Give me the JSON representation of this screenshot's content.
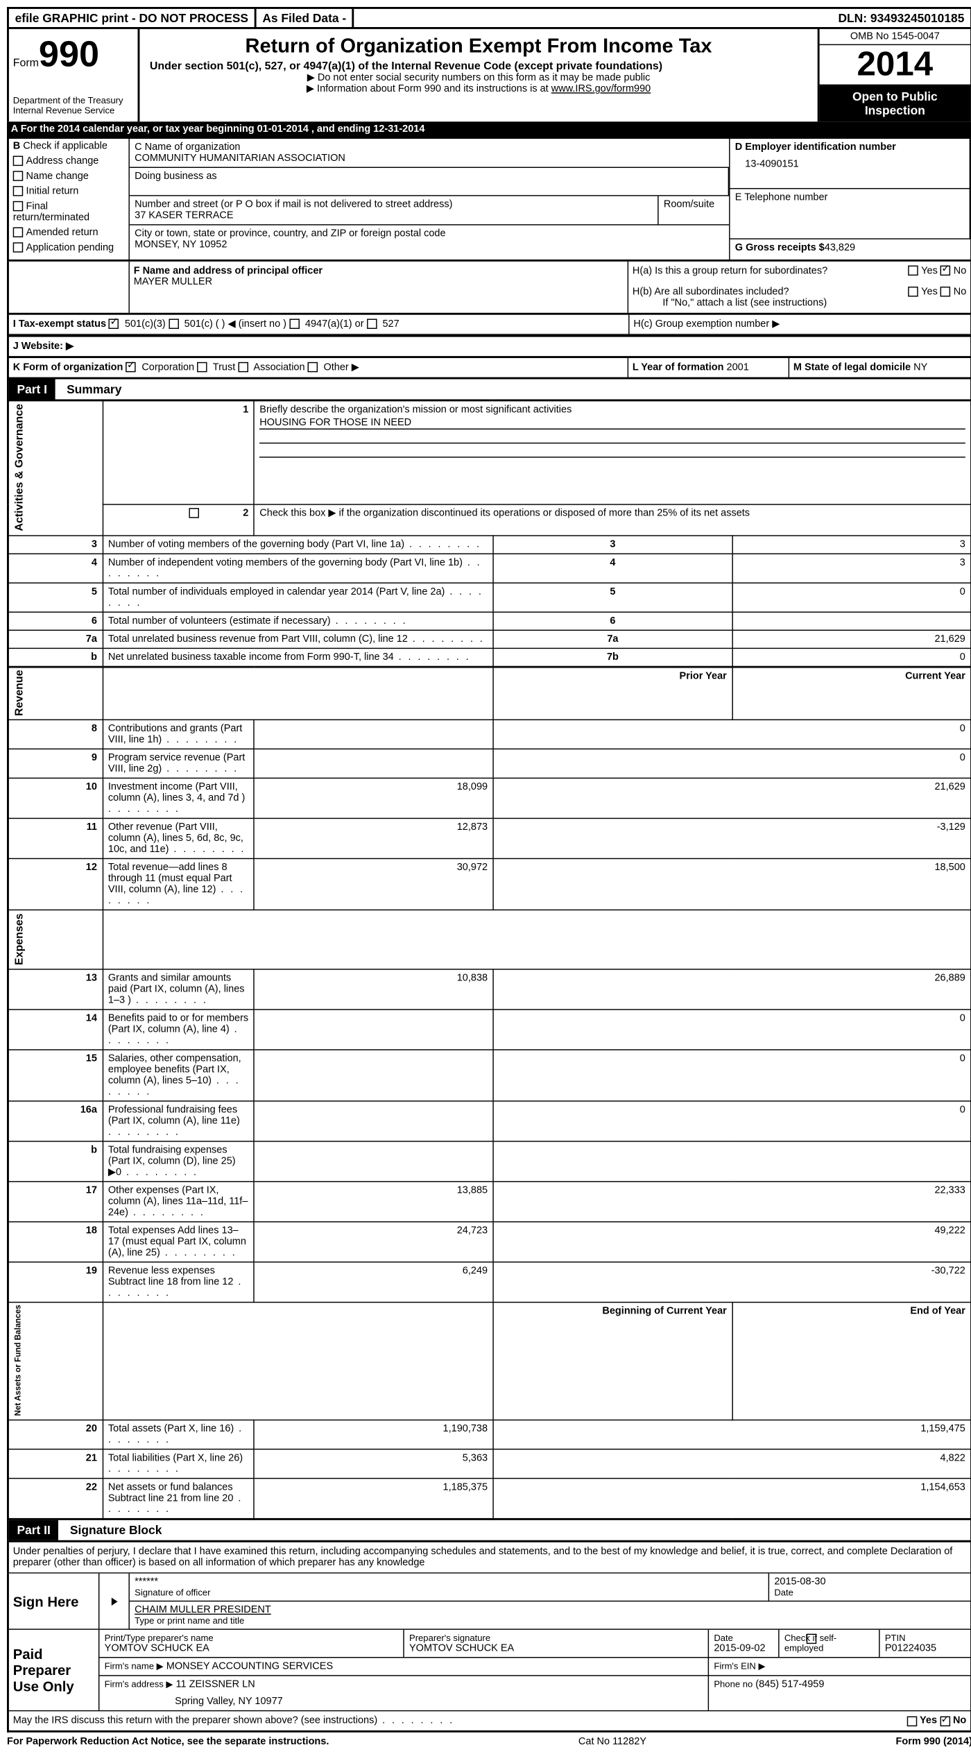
{
  "topbar": {
    "efile": "efile GRAPHIC print - DO NOT PROCESS",
    "asfiled": "As Filed Data -",
    "dln_label": "DLN:",
    "dln": "93493245010185"
  },
  "header": {
    "form_label": "Form",
    "form_num": "990",
    "dept1": "Department of the Treasury",
    "dept2": "Internal Revenue Service",
    "title": "Return of Organization Exempt From Income Tax",
    "subtitle": "Under section 501(c), 527, or 4947(a)(1) of the Internal Revenue Code (except private foundations)",
    "note1": "▶ Do not enter social security numbers on this form as it may be made public",
    "note2": "▶ Information about Form 990 and its instructions is at",
    "irs_link": "www.IRS.gov/form990",
    "omb": "OMB No 1545-0047",
    "year": "2014",
    "inspect1": "Open to Public",
    "inspect2": "Inspection"
  },
  "a": {
    "text": "A For the 2014 calendar year, or tax year beginning 01-01-2014    , and ending 12-31-2014"
  },
  "b": {
    "label": "B",
    "check_label": "Check if applicable",
    "items": [
      "Address change",
      "Name change",
      "Initial return",
      "Final return/terminated",
      "Amended return",
      "Application pending"
    ]
  },
  "c": {
    "name_label": "C Name of organization",
    "name": "COMMUNITY HUMANITARIAN ASSOCIATION",
    "dba_label": "Doing business as",
    "addr_label": "Number and street (or P O  box if mail is not delivered to street address)",
    "room_label": "Room/suite",
    "addr": "37 KASER TERRACE",
    "city_label": "City or town, state or province, country, and ZIP or foreign postal code",
    "city": "MONSEY, NY  10952"
  },
  "d": {
    "label": "D Employer identification number",
    "value": "13-4090151"
  },
  "e": {
    "label": "E Telephone number",
    "value": ""
  },
  "g": {
    "label": "G Gross receipts $",
    "value": "43,829"
  },
  "f": {
    "label": "F   Name and address of principal officer",
    "value": "MAYER MULLER"
  },
  "h": {
    "a_label": "H(a)  Is this a group return for subordinates?",
    "b_label": "H(b)  Are all subordinates included?",
    "ifno": "If \"No,\" attach a list  (see instructions)",
    "c_label": "H(c)  Group exemption number ▶",
    "yes": "Yes",
    "no": "No"
  },
  "i": {
    "label": "I   Tax-exempt status",
    "opts": [
      "501(c)(3)",
      "501(c) (  ) ◀ (insert no )",
      "4947(a)(1) or",
      "527"
    ]
  },
  "j": {
    "label": "J   Website: ▶"
  },
  "k": {
    "label": "K Form of organization",
    "opts": [
      "Corporation",
      "Trust",
      "Association",
      "Other ▶"
    ]
  },
  "l": {
    "label": "L Year of formation",
    "value": "2001"
  },
  "m": {
    "label": "M State of legal domicile",
    "value": "NY"
  },
  "part1": {
    "label": "Part I",
    "title": "Summary"
  },
  "summary": {
    "side1": "Activities & Governance",
    "side2": "Revenue",
    "side3": "Expenses",
    "side4": "Net Assets or Fund Balances",
    "line1_label": "Briefly describe the organization's mission or most significant activities",
    "line1_value": "HOUSING FOR THOSE IN NEED",
    "line2": "Check this box ▶   if the organization discontinued its operations or disposed of more than 25% of its net assets",
    "rows_gov": [
      {
        "n": "3",
        "label": "Number of voting members of the governing body (Part VI, line 1a)",
        "box": "3",
        "val": "3"
      },
      {
        "n": "4",
        "label": "Number of independent voting members of the governing body (Part VI, line 1b)",
        "box": "4",
        "val": "3"
      },
      {
        "n": "5",
        "label": "Total number of individuals employed in calendar year 2014 (Part V, line 2a)",
        "box": "5",
        "val": "0"
      },
      {
        "n": "6",
        "label": "Total number of volunteers (estimate if necessary)",
        "box": "6",
        "val": ""
      },
      {
        "n": "7a",
        "label": "Total unrelated business revenue from Part VIII, column (C), line 12",
        "box": "7a",
        "val": "21,629"
      },
      {
        "n": "b",
        "label": "Net unrelated business taxable income from Form 990-T, line 34",
        "box": "7b",
        "val": "0"
      }
    ],
    "col_prior": "Prior Year",
    "col_current": "Current Year",
    "rows_rev": [
      {
        "n": "8",
        "label": "Contributions and grants (Part VIII, line 1h)",
        "prior": "",
        "curr": "0"
      },
      {
        "n": "9",
        "label": "Program service revenue (Part VIII, line 2g)",
        "prior": "",
        "curr": "0"
      },
      {
        "n": "10",
        "label": "Investment income (Part VIII, column (A), lines 3, 4, and 7d )",
        "prior": "18,099",
        "curr": "21,629"
      },
      {
        "n": "11",
        "label": "Other revenue (Part VIII, column (A), lines 5, 6d, 8c, 9c, 10c, and 11e)",
        "prior": "12,873",
        "curr": "-3,129"
      },
      {
        "n": "12",
        "label": "Total revenue—add lines 8 through 11 (must equal Part VIII, column (A), line 12)",
        "prior": "30,972",
        "curr": "18,500"
      }
    ],
    "rows_exp": [
      {
        "n": "13",
        "label": "Grants and similar amounts paid (Part IX, column (A), lines 1–3 )",
        "prior": "10,838",
        "curr": "26,889"
      },
      {
        "n": "14",
        "label": "Benefits paid to or for members (Part IX, column (A), line 4)",
        "prior": "",
        "curr": "0"
      },
      {
        "n": "15",
        "label": "Salaries, other compensation, employee benefits (Part IX, column (A), lines 5–10)",
        "prior": "",
        "curr": "0"
      },
      {
        "n": "16a",
        "label": "Professional fundraising fees (Part IX, column (A), line 11e)",
        "prior": "",
        "curr": "0"
      },
      {
        "n": "b",
        "label": "Total fundraising expenses (Part IX, column (D), line 25) ▶0",
        "prior": "",
        "curr": ""
      },
      {
        "n": "17",
        "label": "Other expenses (Part IX, column (A), lines 11a–11d, 11f–24e)",
        "prior": "13,885",
        "curr": "22,333"
      },
      {
        "n": "18",
        "label": "Total expenses  Add lines 13–17 (must equal Part IX, column (A), line 25)",
        "prior": "24,723",
        "curr": "49,222"
      },
      {
        "n": "19",
        "label": "Revenue less expenses  Subtract line 18 from line 12",
        "prior": "6,249",
        "curr": "-30,722"
      }
    ],
    "col_begin": "Beginning of Current Year",
    "col_end": "End of Year",
    "rows_net": [
      {
        "n": "20",
        "label": "Total assets (Part X, line 16)",
        "prior": "1,190,738",
        "curr": "1,159,475"
      },
      {
        "n": "21",
        "label": "Total liabilities (Part X, line 26)",
        "prior": "5,363",
        "curr": "4,822"
      },
      {
        "n": "22",
        "label": "Net assets or fund balances  Subtract line 21 from line 20",
        "prior": "1,185,375",
        "curr": "1,154,653"
      }
    ]
  },
  "part2": {
    "label": "Part II",
    "title": "Signature Block"
  },
  "perjury": "Under penalties of perjury, I declare that I have examined this return, including accompanying schedules and statements, and to the best of my knowledge and belief, it is true, correct, and complete  Declaration of preparer (other than officer) is based on all information of which preparer has any knowledge",
  "sign": {
    "here": "Sign Here",
    "stars": "******",
    "sig_officer": "Signature of officer",
    "date_label": "Date",
    "date": "2015-08-30",
    "name": "CHAIM MULLER  PRESIDENT",
    "name_label": "Type or print name and title"
  },
  "paid": {
    "label": "Paid Preparer Use Only",
    "print_label": "Print/Type preparer's name",
    "print_name": "YOMTOV SCHUCK EA",
    "sig_label": "Preparer's signature",
    "sig_name": "YOMTOV SCHUCK EA",
    "date_label": "Date",
    "date": "2015-09-02",
    "check_label": "Check     if self-employed",
    "ptin_label": "PTIN",
    "ptin": "P01224035",
    "firm_name_label": "Firm's name      ▶",
    "firm_name": "MONSEY ACCOUNTING SERVICES",
    "ein_label": "Firm's EIN ▶",
    "addr_label": "Firm's address ▶",
    "addr1": "11 ZEISSNER LN",
    "addr2": "Spring Valley, NY  10977",
    "phone_label": "Phone no",
    "phone": "(845) 517-4959"
  },
  "discuss": {
    "label": "May the IRS discuss this return with the preparer shown above? (see instructions)",
    "yes": "Yes",
    "no": "No"
  },
  "footer": {
    "left": "For Paperwork Reduction Act Notice, see the separate instructions.",
    "mid": "Cat No 11282Y",
    "right": "Form 990 (2014)"
  }
}
